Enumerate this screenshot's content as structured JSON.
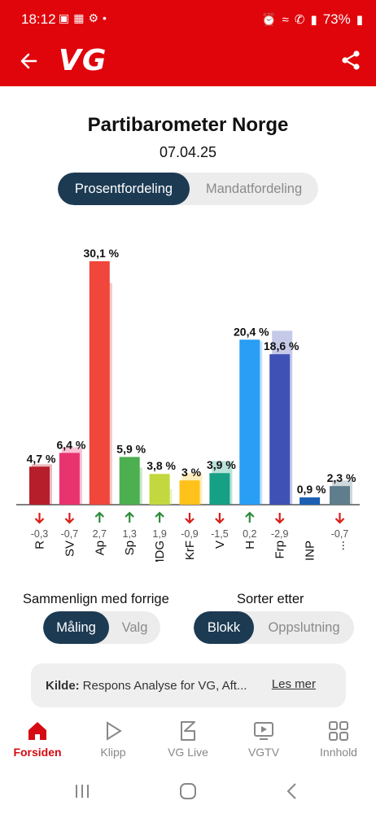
{
  "status_bar": {
    "time": "18:12",
    "battery": "73%"
  },
  "app_bar": {
    "logo": "VG"
  },
  "title": "Partibarometer Norge",
  "date": "07.04.25",
  "view_tabs": [
    {
      "label": "Prosentfordeling",
      "active": true
    },
    {
      "label": "Mandatfordeling",
      "active": false
    }
  ],
  "chart_data": {
    "type": "bar",
    "title": "Partibarometer Norge",
    "categories": [
      "R",
      "SV",
      "Ap",
      "Sp",
      "MDG",
      "KrF",
      "V",
      "H",
      "Frp",
      "INP",
      "..."
    ],
    "values": [
      4.7,
      6.4,
      30.1,
      5.9,
      3.8,
      3.0,
      3.9,
      20.4,
      18.6,
      0.9,
      2.3
    ],
    "value_labels": [
      "4,7 %",
      "6,4 %",
      "30,1 %",
      "5,9 %",
      "3,8 %",
      "3 %",
      "3,9 %",
      "20,4 %",
      "18,6 %",
      "0,9 %",
      "2,3 %"
    ],
    "previous_values": [
      5.0,
      7.1,
      27.4,
      4.6,
      1.9,
      3.9,
      5.4,
      20.2,
      21.5,
      null,
      3.0
    ],
    "changes": [
      -0.3,
      -0.7,
      2.7,
      1.3,
      1.9,
      -0.9,
      -1.5,
      0.2,
      -2.9,
      null,
      -0.7
    ],
    "change_labels": [
      "-0,3",
      "-0,7",
      "2,7",
      "1,3",
      "1,9",
      "-0,9",
      "-1,5",
      "0,2",
      "-2,9",
      "",
      "-0,7"
    ],
    "colors": [
      "#b61e2c",
      "#e8336f",
      "#f0463c",
      "#4caf50",
      "#c2d83e",
      "#ffc21a",
      "#16a085",
      "#2a9df4",
      "#3f51b5",
      "#1a5fb4",
      "#5f7d8c"
    ],
    "ylim": [
      0,
      32
    ],
    "up_color": "#2e8b3b",
    "down_color": "#d91e18"
  },
  "compare": {
    "label": "Sammenlign med forrige",
    "options": [
      {
        "label": "Måling",
        "active": true
      },
      {
        "label": "Valg",
        "active": false
      }
    ]
  },
  "sort": {
    "label": "Sorter etter",
    "options": [
      {
        "label": "Blokk",
        "active": true
      },
      {
        "label": "Oppslutning",
        "active": false
      }
    ]
  },
  "source": {
    "prefix": "Kilde:",
    "text": "Respons Analyse for VG, Aft...",
    "link": "Les mer"
  },
  "bottom_nav": [
    {
      "label": "Forsiden",
      "icon": "home-icon",
      "active": true
    },
    {
      "label": "Klipp",
      "icon": "play-icon",
      "active": false
    },
    {
      "label": "VG Live",
      "icon": "vg-live-icon",
      "active": false
    },
    {
      "label": "VGTV",
      "icon": "tv-icon",
      "active": false
    },
    {
      "label": "Innhold",
      "icon": "grid-icon",
      "active": false
    }
  ]
}
